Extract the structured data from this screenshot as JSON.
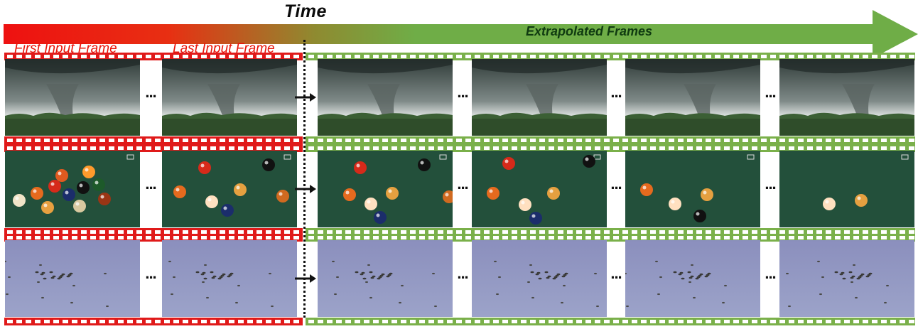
{
  "header": {
    "title": "Time",
    "extrapolated_label": "Extrapolated Frames",
    "first_input_label": "First Input Frame",
    "last_input_label": "Last Input Frame"
  },
  "colors": {
    "input_red": "#e01a1a",
    "output_green": "#7ab04a",
    "arrow_start": "#ee1111",
    "arrow_end": "#6fad47"
  },
  "rows": [
    {
      "scene": "tornado",
      "ellipsis": "..."
    },
    {
      "scene": "billiards",
      "ellipsis": "..."
    },
    {
      "scene": "birds-on-snow",
      "ellipsis": "..."
    }
  ]
}
